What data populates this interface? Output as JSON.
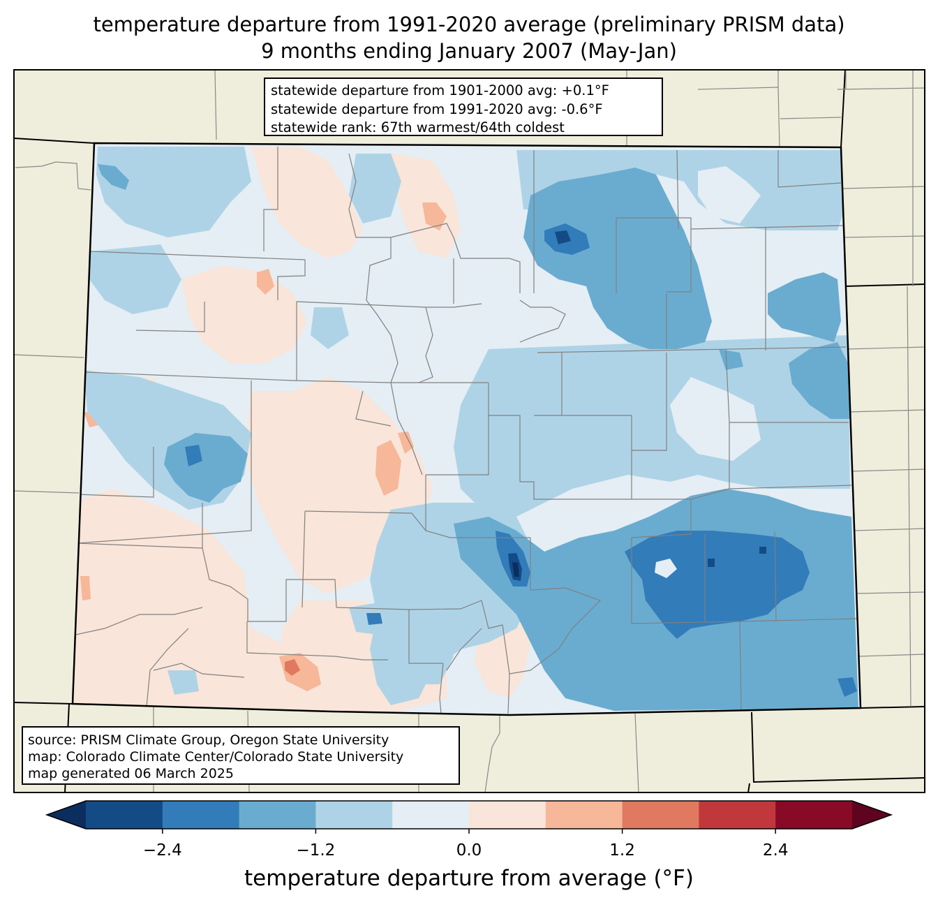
{
  "title": {
    "line1": "temperature departure from 1991-2020 average (preliminary PRISM data)",
    "line2": "9 months ending January 2007 (May-Jan)"
  },
  "stats": {
    "line1": "statewide departure from 1901-2000 avg: +0.1°F",
    "line2": "statewide departure from 1991-2020 avg: -0.6°F",
    "line3": "statewide rank: 67th warmest/64th coldest"
  },
  "source": {
    "line1": "source: PRISM Climate Group, Oregon State University",
    "line2": "map: Colorado Climate Center/Colorado State University",
    "line3": "map generated 06 March 2025"
  },
  "colorbar": {
    "label": "temperature departure from average (°F)",
    "ticks": [
      "−2.4",
      "−1.2",
      "0.0",
      "1.2",
      "2.4"
    ],
    "min": -3.0,
    "max": 3.0,
    "step": 0.6,
    "colors": [
      "#134b87",
      "#327cb9",
      "#6aacd0",
      "#afd3e6",
      "#e4eef4",
      "#f9e5d9",
      "#f7b799",
      "#e0795f",
      "#c0383c",
      "#880a26"
    ],
    "under_color": "#0b2e5e",
    "over_color": "#5e0320"
  },
  "colors": {
    "land": "#efeedc",
    "very_light_blue": "#e4eef4",
    "light_blue": "#afd3e6",
    "mid_blue": "#6aacd0",
    "blue": "#327cb9",
    "dark_blue": "#134b87",
    "light_orange": "#f9e5d9",
    "orange": "#f7b799",
    "dark_orange": "#e0795f"
  }
}
